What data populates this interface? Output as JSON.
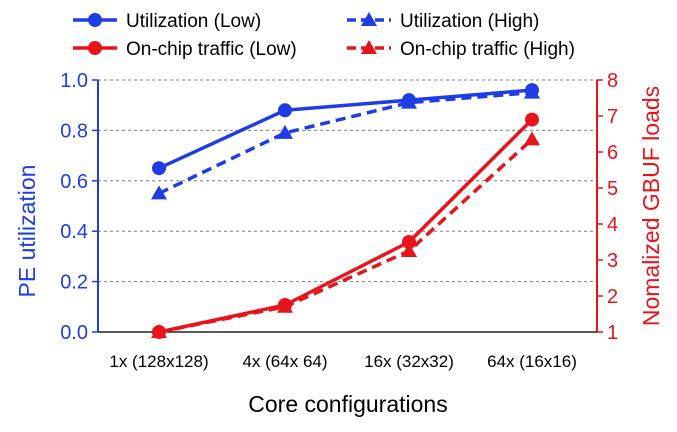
{
  "chart_data": {
    "type": "line",
    "categories": [
      "1x (128x128)",
      "4x (64x 64)",
      "16x (32x32)",
      "64x (16x16)"
    ],
    "xlabel": "Core configurations",
    "ylabel_left": "PE utilization",
    "ylabel_right": "Nomalized GBUF loads",
    "ylim_left": [
      0,
      1
    ],
    "ylim_right": [
      1,
      8
    ],
    "yticks_left": [
      "0.0",
      "0.2",
      "0.4",
      "0.6",
      "0.8",
      "1.0"
    ],
    "yticks_right": [
      "1",
      "2",
      "3",
      "4",
      "5",
      "6",
      "7",
      "8"
    ],
    "grid": "horizontal dashed",
    "legend_position": "top",
    "colors": {
      "left_axis": "#1f3de6",
      "right_axis": "#e8141b"
    },
    "series": [
      {
        "name": "Utilization (Low)",
        "axis": "left",
        "marker": "circle",
        "line": "solid",
        "color": "#1f3de6",
        "values": [
          0.65,
          0.88,
          0.92,
          0.96
        ]
      },
      {
        "name": "Utilization (High)",
        "axis": "left",
        "marker": "triangle",
        "line": "dashed",
        "color": "#1f3de6",
        "values": [
          0.55,
          0.79,
          0.91,
          0.95
        ]
      },
      {
        "name": "On-chip traffic (Low)",
        "axis": "right",
        "marker": "circle",
        "line": "solid",
        "color": "#e8141b",
        "values": [
          1.0,
          1.75,
          3.5,
          6.9
        ]
      },
      {
        "name": "On-chip traffic (High)",
        "axis": "right",
        "marker": "triangle",
        "line": "dashed",
        "color": "#e8141b",
        "values": [
          1.0,
          1.7,
          3.25,
          6.35
        ]
      }
    ]
  }
}
